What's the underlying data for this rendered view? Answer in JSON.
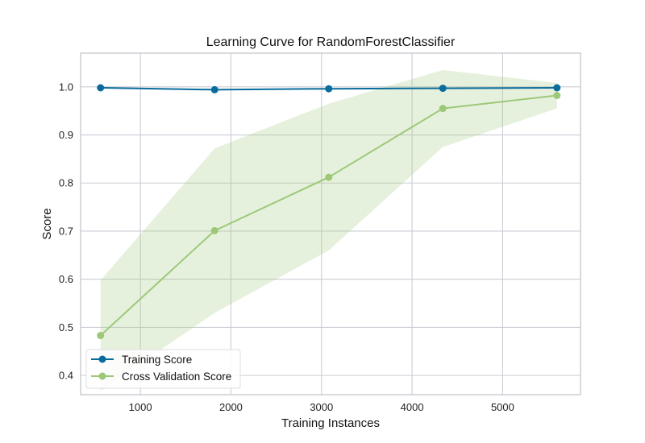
{
  "chart_data": {
    "type": "line",
    "title": "Learning Curve for RandomForestClassifier",
    "xlabel": "Training Instances",
    "ylabel": "Score",
    "xlim": [
      340,
      5860
    ],
    "ylim": [
      0.36,
      1.07
    ],
    "xticks": [
      1000,
      2000,
      3000,
      4000,
      5000
    ],
    "yticks": [
      0.4,
      0.5,
      0.6,
      0.7,
      0.8,
      0.9,
      1.0
    ],
    "xtick_labels": [
      "1000",
      "2000",
      "3000",
      "4000",
      "5000"
    ],
    "ytick_labels": [
      "0.4",
      "0.5",
      "0.6",
      "0.7",
      "0.8",
      "0.9",
      "1.0"
    ],
    "grid": true,
    "legend_position": "lower-left",
    "x": [
      560,
      1820,
      3080,
      4340,
      5600
    ],
    "series": [
      {
        "name": "Training Score",
        "color": "#0a6c9c",
        "values": [
          0.998,
          0.994,
          0.996,
          0.997,
          0.998
        ],
        "band_lower": [
          0.997,
          0.993,
          0.995,
          0.996,
          0.997
        ],
        "band_upper": [
          0.999,
          0.995,
          0.997,
          0.998,
          0.999
        ]
      },
      {
        "name": "Cross Validation Score",
        "color": "#9dc878",
        "values": [
          0.483,
          0.701,
          0.812,
          0.955,
          0.982
        ],
        "band_lower": [
          0.368,
          0.53,
          0.66,
          0.875,
          0.955
        ],
        "band_upper": [
          0.598,
          0.872,
          0.965,
          1.035,
          1.008
        ]
      }
    ]
  }
}
